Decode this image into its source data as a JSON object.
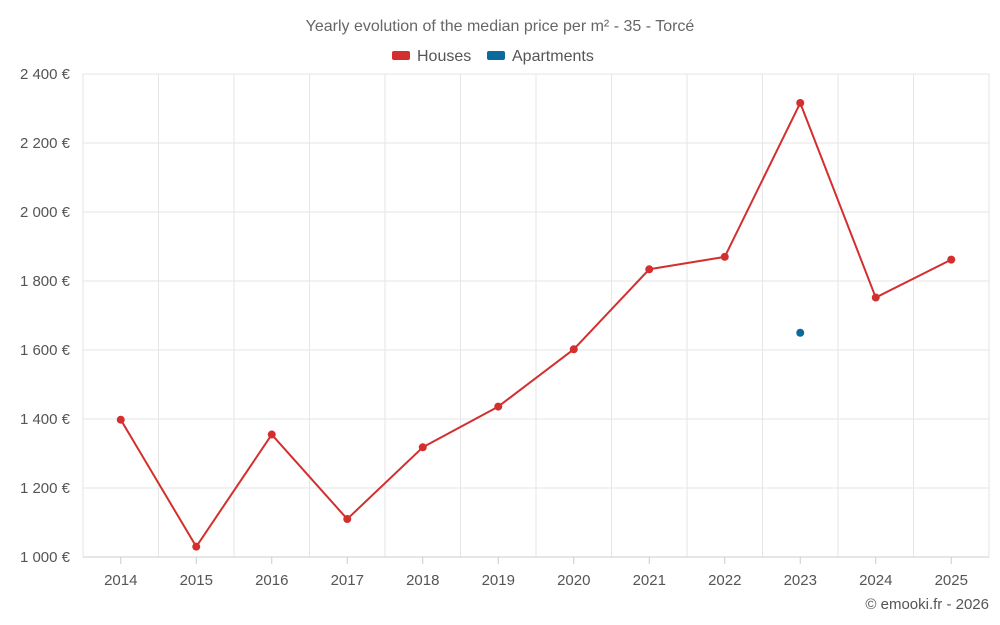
{
  "chart_data": {
    "type": "line",
    "title": "Yearly evolution of the median price per m² - 35 - Torcé",
    "xlabel": "",
    "ylabel": "",
    "categories": [
      "2014",
      "2015",
      "2016",
      "2017",
      "2018",
      "2019",
      "2020",
      "2021",
      "2022",
      "2023",
      "2024",
      "2025"
    ],
    "ylim": [
      1000,
      2400
    ],
    "yticks": [
      1000,
      1200,
      1400,
      1600,
      1800,
      2000,
      2200,
      2400
    ],
    "ytick_labels": [
      "1 000 €",
      "1 200 €",
      "1 400 €",
      "1 600 €",
      "1 800 €",
      "2 000 €",
      "2 200 €",
      "2 400 €"
    ],
    "grid": true,
    "legend_position": "top-center",
    "series": [
      {
        "name": "Houses",
        "color": "#d32f2f",
        "values": [
          1398,
          1030,
          1355,
          1110,
          1318,
          1436,
          1602,
          1834,
          1870,
          2316,
          1752,
          1862
        ]
      },
      {
        "name": "Apartments",
        "color": "#0b6a9c",
        "values": [
          null,
          null,
          null,
          null,
          null,
          null,
          null,
          null,
          null,
          1650,
          null,
          null
        ]
      }
    ]
  },
  "credit": "© emooki.fr - 2026"
}
